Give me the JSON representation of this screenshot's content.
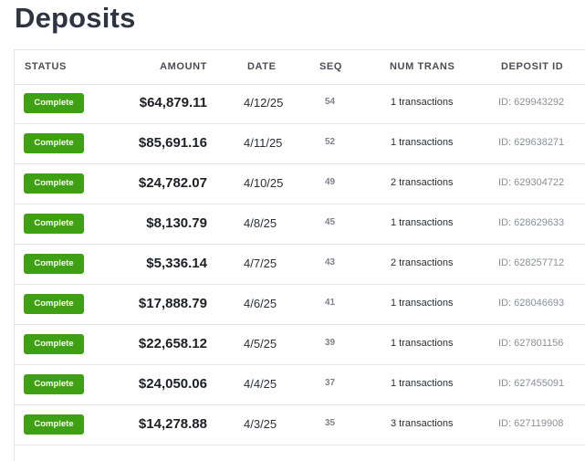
{
  "page": {
    "title": "Deposits"
  },
  "table": {
    "headers": {
      "status": "STATUS",
      "amount": "AMOUNT",
      "date": "DATE",
      "seq": "SEQ",
      "num_trans": "NUM TRANS",
      "deposit_id": "DEPOSIT ID"
    },
    "rows": [
      {
        "status": "Complete",
        "amount": "$64,879.11",
        "date": "4/12/25",
        "seq": "54",
        "num_trans": "1 transactions",
        "deposit_id": "ID: 629943292"
      },
      {
        "status": "Complete",
        "amount": "$85,691.16",
        "date": "4/11/25",
        "seq": "52",
        "num_trans": "1 transactions",
        "deposit_id": "ID: 629638271"
      },
      {
        "status": "Complete",
        "amount": "$24,782.07",
        "date": "4/10/25",
        "seq": "49",
        "num_trans": "2 transactions",
        "deposit_id": "ID: 629304722"
      },
      {
        "status": "Complete",
        "amount": "$8,130.79",
        "date": "4/8/25",
        "seq": "45",
        "num_trans": "1 transactions",
        "deposit_id": "ID: 628629633"
      },
      {
        "status": "Complete",
        "amount": "$5,336.14",
        "date": "4/7/25",
        "seq": "43",
        "num_trans": "2 transactions",
        "deposit_id": "ID: 628257712"
      },
      {
        "status": "Complete",
        "amount": "$17,888.79",
        "date": "4/6/25",
        "seq": "41",
        "num_trans": "1 transactions",
        "deposit_id": "ID: 628046693"
      },
      {
        "status": "Complete",
        "amount": "$22,658.12",
        "date": "4/5/25",
        "seq": "39",
        "num_trans": "1 transactions",
        "deposit_id": "ID: 627801156"
      },
      {
        "status": "Complete",
        "amount": "$24,050.06",
        "date": "4/4/25",
        "seq": "37",
        "num_trans": "1 transactions",
        "deposit_id": "ID: 627455091"
      },
      {
        "status": "Complete",
        "amount": "$14,278.88",
        "date": "4/3/25",
        "seq": "35",
        "num_trans": "3 transactions",
        "deposit_id": "ID: 627119908"
      }
    ]
  },
  "colors": {
    "status_complete": "#3fa014",
    "title": "#2e3542"
  }
}
